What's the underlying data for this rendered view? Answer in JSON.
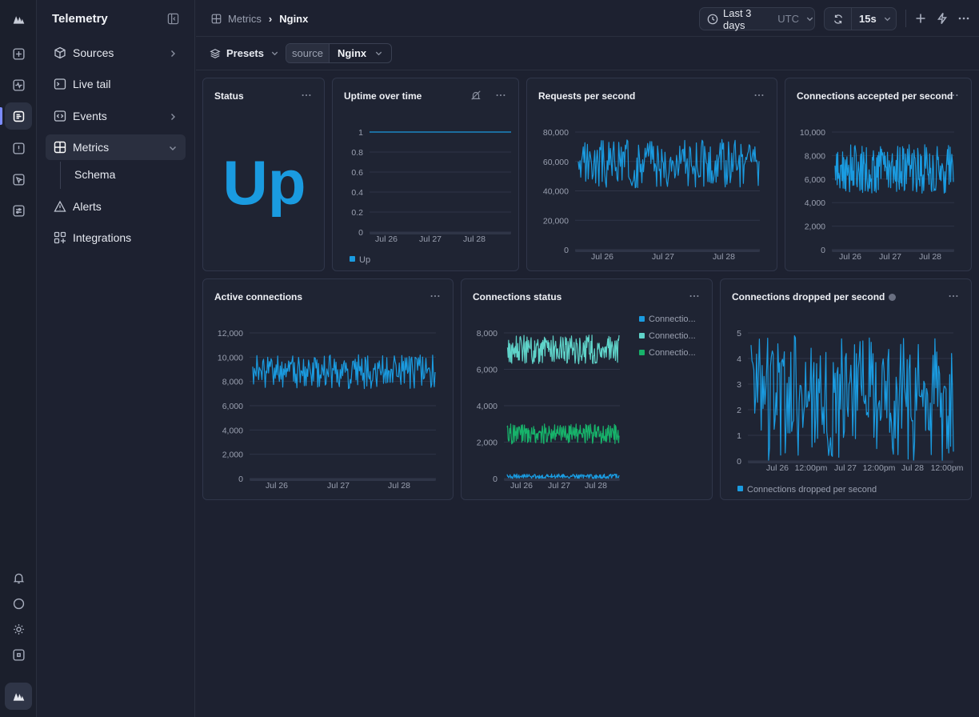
{
  "app": {
    "title": "Telemetry"
  },
  "nav": {
    "items": [
      {
        "label": "Sources",
        "icon": "cube-icon"
      },
      {
        "label": "Live tail",
        "icon": "terminal-icon"
      },
      {
        "label": "Events",
        "icon": "code-icon"
      },
      {
        "label": "Metrics",
        "icon": "grid-icon"
      },
      {
        "label": "Alerts",
        "icon": "warning-icon"
      },
      {
        "label": "Integrations",
        "icon": "puzzle-icon"
      }
    ],
    "sub_item": "Schema"
  },
  "header": {
    "breadcrumb_parent": "Metrics",
    "breadcrumb_current": "Nginx",
    "time_range": "Last 3 days",
    "timezone": "UTC",
    "refresh_interval": "15s"
  },
  "toolbar": {
    "presets_label": "Presets",
    "filter_key": "source",
    "filter_value": "Nginx"
  },
  "panels": {
    "status": {
      "title": "Status",
      "value": "Up",
      "color": "#1a9be0"
    },
    "uptime": {
      "title": "Uptime over time"
    },
    "requests": {
      "title": "Requests per second"
    },
    "accepted": {
      "title": "Connections accepted per second"
    },
    "active": {
      "title": "Active connections"
    },
    "conn_status": {
      "title": "Connections status"
    },
    "dropped": {
      "title": "Connections dropped per second"
    }
  },
  "chart_data": [
    {
      "id": "uptime",
      "type": "line",
      "x_ticks": [
        "Jul 26",
        "Jul 27",
        "Jul 28"
      ],
      "y_ticks": [
        "1",
        "0.8",
        "0.6",
        "0.4",
        "0.2",
        "0"
      ],
      "ylim": [
        0,
        1
      ],
      "series": [
        {
          "name": "Up",
          "color": "#1a9be0",
          "constant": 1
        }
      ],
      "legend": "bottom-left"
    },
    {
      "id": "requests",
      "type": "line",
      "x_ticks": [
        "Jul 26",
        "Jul 27",
        "Jul 28"
      ],
      "y_ticks": [
        "80,000",
        "60,000",
        "40,000",
        "20,000",
        "0"
      ],
      "ylim": [
        0,
        80000
      ],
      "series": [
        {
          "color": "#1a9be0",
          "range": [
            42000,
            75000
          ],
          "mean": 58000,
          "seed": 3
        }
      ]
    },
    {
      "id": "accepted",
      "type": "line",
      "x_ticks": [
        "Jul 26",
        "Jul 27",
        "Jul 28"
      ],
      "y_ticks": [
        "10,000",
        "8,000",
        "6,000",
        "4,000",
        "2,000",
        "0"
      ],
      "ylim": [
        0,
        10000
      ],
      "series": [
        {
          "color": "#1a9be0",
          "range": [
            4800,
            9000
          ],
          "mean": 6900,
          "seed": 7
        }
      ]
    },
    {
      "id": "active",
      "type": "line",
      "x_ticks": [
        "Jul 26",
        "Jul 27",
        "Jul 28"
      ],
      "y_ticks": [
        "12,000",
        "10,000",
        "8,000",
        "6,000",
        "4,000",
        "2,000",
        "0"
      ],
      "ylim": [
        0,
        12000
      ],
      "series": [
        {
          "color": "#1a9be0",
          "range": [
            7400,
            10200
          ],
          "mean": 8800,
          "seed": 11
        }
      ]
    },
    {
      "id": "conn_status",
      "type": "line",
      "x_ticks": [
        "Jul 26",
        "Jul 27",
        "Jul 28"
      ],
      "y_ticks": [
        "8,000",
        "6,000",
        "4,000",
        "2,000",
        "0"
      ],
      "ylim": [
        0,
        8000
      ],
      "legend": "right",
      "series": [
        {
          "name": "Connectio...",
          "color": "#1a9be0",
          "range": [
            0,
            250
          ],
          "mean": 100,
          "seed": 13
        },
        {
          "name": "Connectio...",
          "color": "#5fd3c9",
          "range": [
            6300,
            7900
          ],
          "mean": 7100,
          "seed": 17
        },
        {
          "name": "Connectio...",
          "color": "#17b26a",
          "range": [
            1900,
            3000
          ],
          "mean": 2450,
          "seed": 19
        }
      ]
    },
    {
      "id": "dropped",
      "type": "line",
      "x_ticks": [
        "Jul 26",
        "12:00pm",
        "Jul 27",
        "12:00pm",
        "Jul 28",
        "12:00pm"
      ],
      "y_ticks": [
        "5",
        "4",
        "3",
        "2",
        "1",
        "0"
      ],
      "ylim": [
        0,
        5
      ],
      "legend": "bottom-left",
      "series": [
        {
          "name": "Connections dropped per second",
          "color": "#1a9be0",
          "range": [
            0,
            4.9
          ],
          "mean": 2.5,
          "seed": 23
        }
      ]
    }
  ]
}
